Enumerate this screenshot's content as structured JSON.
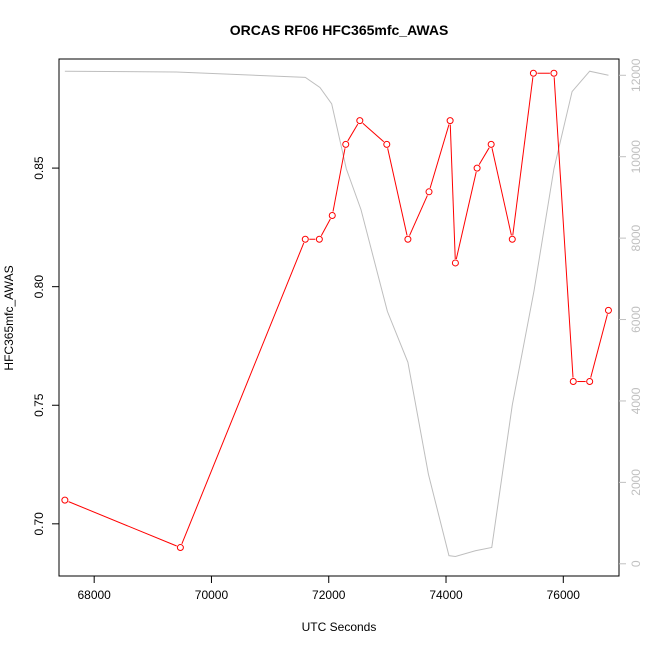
{
  "chart_data": {
    "type": "line",
    "title": "ORCAS RF06 HFC365mfc_AWAS",
    "xlabel": "UTC Seconds",
    "ylabel": "HFC365mfc_AWAS",
    "xlim": [
      67400,
      76950
    ],
    "ylim": [
      0.678,
      0.896
    ],
    "y2lim": [
      -300,
      12400
    ],
    "x_ticks": [
      "68000",
      "70000",
      "72000",
      "74000",
      "76000"
    ],
    "x_tick_values": [
      68000,
      70000,
      72000,
      74000,
      76000
    ],
    "y_ticks": [
      "0.70",
      "0.75",
      "0.80",
      "0.85"
    ],
    "y_tick_values": [
      0.7,
      0.75,
      0.8,
      0.85
    ],
    "y2_ticks": [
      "0",
      "2000",
      "4000",
      "6000",
      "8000",
      "10000",
      "12000"
    ],
    "y2_tick_values": [
      0,
      2000,
      4000,
      6000,
      8000,
      10000,
      12000
    ],
    "series": [
      {
        "color": "#ff0000",
        "axis": "left",
        "marker": "circle",
        "x": [
          67500,
          69470,
          71600,
          71840,
          72060,
          72290,
          72530,
          72990,
          73350,
          73710,
          74070,
          74160,
          74530,
          74770,
          75130,
          75490,
          75840,
          76170,
          76450,
          76770
        ],
        "y": [
          0.71,
          0.69,
          0.82,
          0.82,
          0.83,
          0.86,
          0.87,
          0.86,
          0.82,
          0.84,
          0.87,
          0.81,
          0.85,
          0.86,
          0.82,
          0.89,
          0.89,
          0.76,
          0.76,
          0.79
        ]
      },
      {
        "color": "#bebebe",
        "axis": "right",
        "marker": "none",
        "x": [
          67500,
          69400,
          71600,
          71850,
          72050,
          72300,
          72550,
          73000,
          73350,
          73700,
          74050,
          74160,
          74500,
          74780,
          75130,
          75500,
          75840,
          76150,
          76450,
          76770
        ],
        "y": [
          12100,
          12080,
          11950,
          11700,
          11300,
          9700,
          8700,
          6200,
          4950,
          2200,
          200,
          180,
          320,
          400,
          3900,
          6700,
          9700,
          11600,
          12100,
          12000
        ]
      }
    ]
  }
}
